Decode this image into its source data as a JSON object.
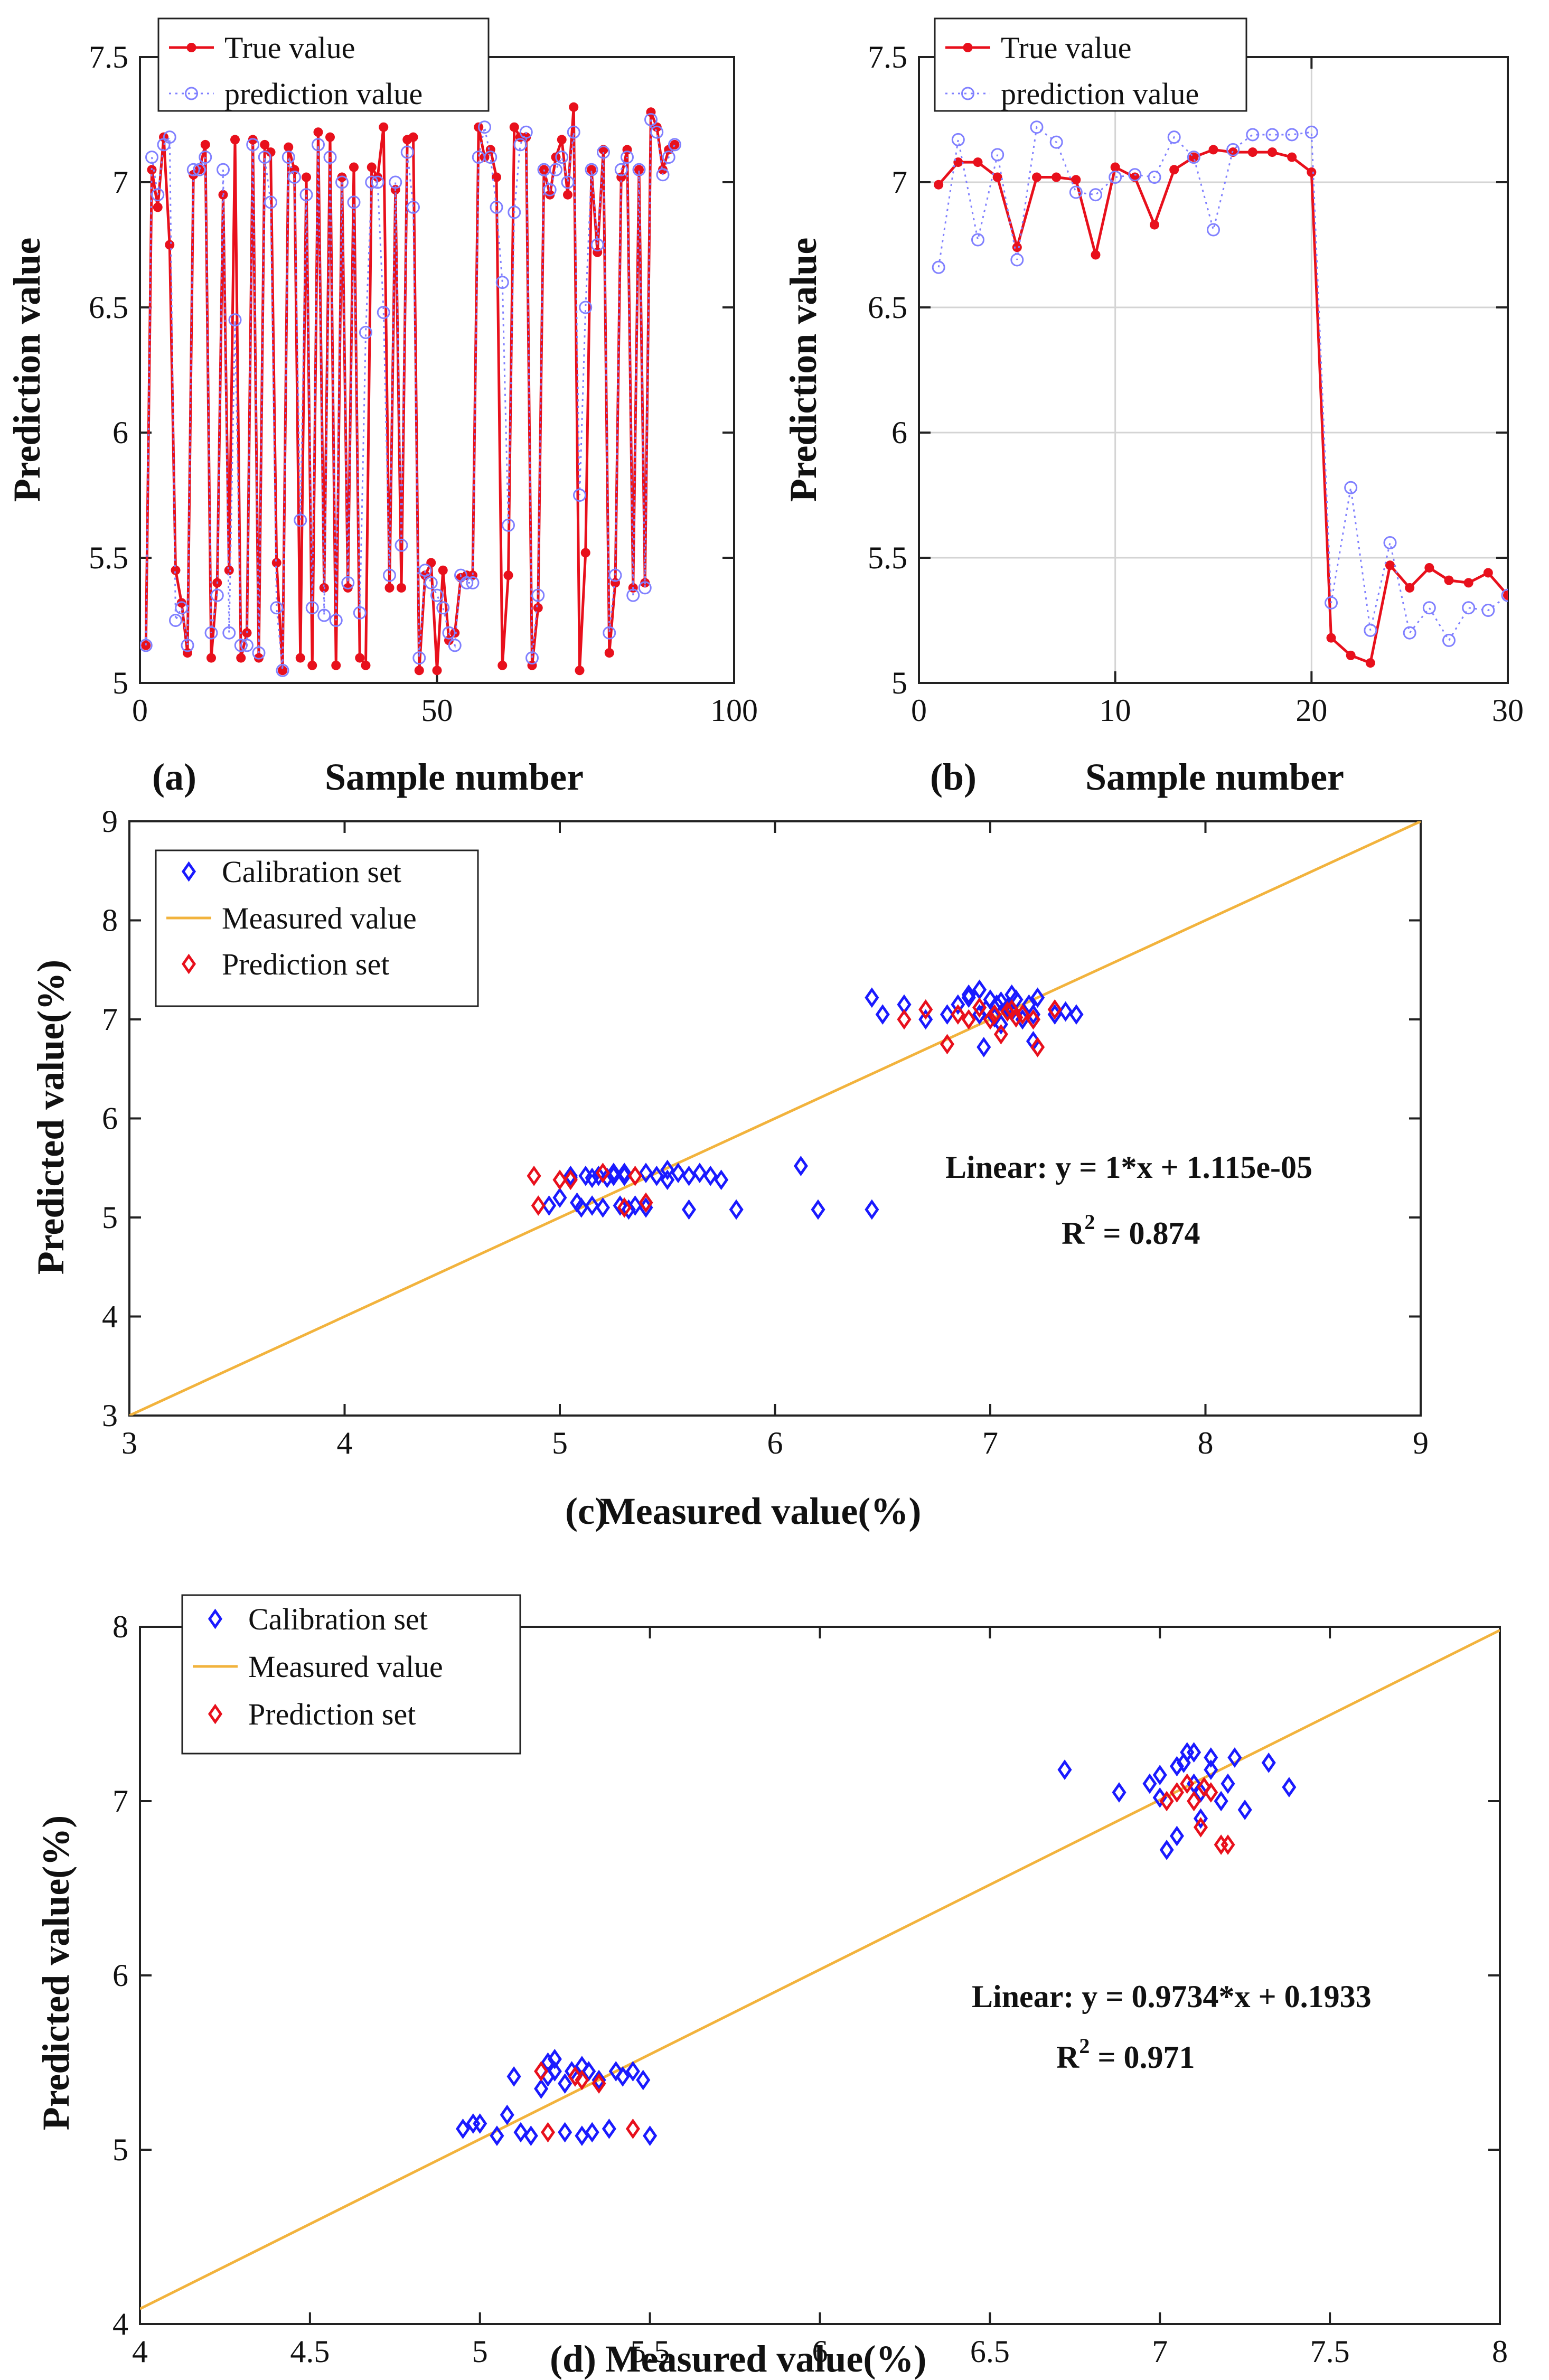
{
  "chart_data": [
    {
      "id": "a",
      "type": "line",
      "panel_label": "(a)",
      "xlabel": "Sample number",
      "ylabel": "Prediction value",
      "xlim": [
        0,
        100
      ],
      "ylim": [
        5,
        7.5
      ],
      "xticks": [
        "0",
        "50",
        "100"
      ],
      "xtick_values": [
        0,
        50,
        100
      ],
      "yticks": [
        "5",
        "5.5",
        "6",
        "6.5",
        "7",
        "7.5"
      ],
      "ytick_values": [
        5,
        5.5,
        6,
        6.5,
        7,
        7.5
      ],
      "grid": false,
      "legend": [
        "True value",
        "prediction value"
      ],
      "legend_position": "top-left",
      "series": [
        {
          "name": "True value",
          "color": "#e8101c",
          "style": "solid-dot",
          "x": [
            1,
            2,
            3,
            4,
            5,
            6,
            7,
            8,
            9,
            10,
            11,
            12,
            13,
            14,
            15,
            16,
            17,
            18,
            19,
            20,
            21,
            22,
            23,
            24,
            25,
            26,
            27,
            28,
            29,
            30,
            31,
            32,
            33,
            34,
            35,
            36,
            37,
            38,
            39,
            40,
            41,
            42,
            43,
            44,
            45,
            46,
            47,
            48,
            49,
            50,
            51,
            52,
            53,
            54,
            55,
            56,
            57,
            58,
            59,
            60,
            61,
            62,
            63,
            64,
            65,
            66,
            67,
            68,
            69,
            70,
            71,
            72,
            73,
            74,
            75,
            76,
            77,
            78,
            79,
            80,
            81,
            82,
            83,
            84,
            85,
            86,
            87,
            88,
            89,
            90
          ],
          "values": [
            5.15,
            7.05,
            6.9,
            7.18,
            6.75,
            5.45,
            5.32,
            5.12,
            7.03,
            7.05,
            7.15,
            5.1,
            5.4,
            6.95,
            5.45,
            7.17,
            5.1,
            5.2,
            7.17,
            5.1,
            7.15,
            7.12,
            5.48,
            5.05,
            7.14,
            7.05,
            5.1,
            7.02,
            5.07,
            7.2,
            5.38,
            7.18,
            5.07,
            7.02,
            5.38,
            7.06,
            5.1,
            5.07,
            7.06,
            7.02,
            7.22,
            5.38,
            6.97,
            5.38,
            7.17,
            7.18,
            5.05,
            5.43,
            5.48,
            5.05,
            5.45,
            5.17,
            5.2,
            5.42,
            5.43,
            5.43,
            7.22,
            7.1,
            7.13,
            7.02,
            5.07,
            5.43,
            7.22,
            7.18,
            7.18,
            5.07,
            5.3,
            7.05,
            6.95,
            7.1,
            7.17,
            6.95,
            7.3,
            5.05,
            5.52,
            7.05,
            6.72,
            7.13,
            5.12,
            5.4,
            7.02,
            7.13,
            5.38,
            7.05,
            5.4,
            7.28,
            7.22,
            7.05,
            7.13,
            7.15
          ]
        },
        {
          "name": "prediction value",
          "color": "#8080ff",
          "style": "dotted-circle",
          "x": [
            1,
            2,
            3,
            4,
            5,
            6,
            7,
            8,
            9,
            10,
            11,
            12,
            13,
            14,
            15,
            16,
            17,
            18,
            19,
            20,
            21,
            22,
            23,
            24,
            25,
            26,
            27,
            28,
            29,
            30,
            31,
            32,
            33,
            34,
            35,
            36,
            37,
            38,
            39,
            40,
            41,
            42,
            43,
            44,
            45,
            46,
            47,
            48,
            49,
            50,
            51,
            52,
            53,
            54,
            55,
            56,
            57,
            58,
            59,
            60,
            61,
            62,
            63,
            64,
            65,
            66,
            67,
            68,
            69,
            70,
            71,
            72,
            73,
            74,
            75,
            76,
            77,
            78,
            79,
            80,
            81,
            82,
            83,
            84,
            85,
            86,
            87,
            88,
            89,
            90
          ],
          "values": [
            5.15,
            7.1,
            6.95,
            7.15,
            7.18,
            5.25,
            5.3,
            5.15,
            7.05,
            7.05,
            7.1,
            5.2,
            5.35,
            7.05,
            5.2,
            6.45,
            5.15,
            5.15,
            7.15,
            5.12,
            7.1,
            6.92,
            5.3,
            5.05,
            7.1,
            7.02,
            5.65,
            6.95,
            5.3,
            7.15,
            5.27,
            7.1,
            5.25,
            7.0,
            5.4,
            6.92,
            5.28,
            6.4,
            7.0,
            7.0,
            6.48,
            5.43,
            7.0,
            5.55,
            7.12,
            6.9,
            5.1,
            5.45,
            5.4,
            5.35,
            5.3,
            5.2,
            5.15,
            5.43,
            5.4,
            5.4,
            7.1,
            7.22,
            7.1,
            6.9,
            6.6,
            5.63,
            6.88,
            7.15,
            7.2,
            5.1,
            5.35,
            7.05,
            6.97,
            7.05,
            7.1,
            7.0,
            7.2,
            5.75,
            6.5,
            7.05,
            6.75,
            7.12,
            5.2,
            5.43,
            7.05,
            7.1,
            5.35,
            7.05,
            5.38,
            7.25,
            7.2,
            7.03,
            7.1,
            7.15
          ]
        }
      ]
    },
    {
      "id": "b",
      "type": "line",
      "panel_label": "(b)",
      "xlabel": "Sample number",
      "ylabel": "Prediction value",
      "xlim": [
        0,
        30
      ],
      "ylim": [
        5,
        7.5
      ],
      "xticks": [
        "0",
        "10",
        "20",
        "30"
      ],
      "xtick_values": [
        0,
        10,
        20,
        30
      ],
      "yticks": [
        "5",
        "5.5",
        "6",
        "6.5",
        "7",
        "7.5"
      ],
      "ytick_values": [
        5,
        5.5,
        6,
        6.5,
        7,
        7.5
      ],
      "grid": true,
      "legend": [
        "True value",
        "prediction value"
      ],
      "legend_position": "top-left",
      "series": [
        {
          "name": "True value",
          "color": "#e8101c",
          "style": "solid-dot",
          "x": [
            1,
            2,
            3,
            4,
            5,
            6,
            7,
            8,
            9,
            10,
            11,
            12,
            13,
            14,
            15,
            16,
            17,
            18,
            19,
            20,
            21,
            22,
            23,
            24,
            25,
            26,
            27,
            28,
            29,
            30
          ],
          "values": [
            6.99,
            7.08,
            7.08,
            7.02,
            6.74,
            7.02,
            7.02,
            7.01,
            6.71,
            7.06,
            7.02,
            6.83,
            7.05,
            7.1,
            7.13,
            7.12,
            7.12,
            7.12,
            7.1,
            7.04,
            5.18,
            5.11,
            5.08,
            5.47,
            5.38,
            5.46,
            5.41,
            5.4,
            5.44,
            5.35
          ]
        },
        {
          "name": "prediction value",
          "color": "#8080ff",
          "style": "dotted-circle",
          "x": [
            1,
            2,
            3,
            4,
            5,
            6,
            7,
            8,
            9,
            10,
            11,
            12,
            13,
            14,
            15,
            16,
            17,
            18,
            19,
            20,
            21,
            22,
            23,
            24,
            25,
            26,
            27,
            28,
            29,
            30
          ],
          "values": [
            6.66,
            7.17,
            6.77,
            7.11,
            6.69,
            7.22,
            7.16,
            6.96,
            6.95,
            7.02,
            7.03,
            7.02,
            7.18,
            7.1,
            6.81,
            7.13,
            7.19,
            7.19,
            7.19,
            7.2,
            5.32,
            5.78,
            5.21,
            5.56,
            5.2,
            5.3,
            5.17,
            5.3,
            5.29,
            5.35
          ]
        }
      ]
    },
    {
      "id": "c",
      "type": "scatter",
      "panel_label": "(c)",
      "xlabel": "Measured value(%)",
      "ylabel": "Predicted value(%)",
      "xlim": [
        3,
        9
      ],
      "ylim": [
        3,
        9
      ],
      "xticks": [
        "3",
        "4",
        "5",
        "6",
        "7",
        "8",
        "9"
      ],
      "xtick_values": [
        3,
        4,
        5,
        6,
        7,
        8,
        9
      ],
      "yticks": [
        "3",
        "4",
        "5",
        "6",
        "7",
        "8",
        "9"
      ],
      "ytick_values": [
        3,
        4,
        5,
        6,
        7,
        8,
        9
      ],
      "grid": false,
      "legend": [
        "Calibration set",
        "Measured value",
        "Prediction set"
      ],
      "legend_position": "top-left",
      "fit_line": {
        "name": "Measured value",
        "color": "#f2b33d",
        "slope": 1,
        "intercept": 1.115e-05
      },
      "annotations": {
        "equation": "Linear:  y = 1*x + 1.115e-05",
        "r2_prefix": "R",
        "r2_sup": "2",
        "r2_value": " = 0.874"
      },
      "series": [
        {
          "name": "Calibration set",
          "color": "#1a1aff",
          "x": [
            4.95,
            5.0,
            5.05,
            5.08,
            5.1,
            5.12,
            5.15,
            5.18,
            5.2,
            5.22,
            5.25,
            5.28,
            5.3,
            5.32,
            5.35,
            5.4,
            5.45,
            5.5,
            5.55,
            5.6,
            5.65,
            5.7,
            5.75,
            5.82,
            6.12,
            6.2,
            6.45,
            5.05,
            5.15,
            5.25,
            5.3,
            5.4,
            5.5,
            5.6,
            6.45,
            6.5,
            6.6,
            6.7,
            6.8,
            6.85,
            6.9,
            6.95,
            6.97,
            7.0,
            7.02,
            7.05,
            7.08,
            7.1,
            7.12,
            7.15,
            7.18,
            7.2,
            7.22,
            7.3,
            7.35,
            7.4,
            6.9,
            6.95,
            7.05,
            7.1,
            7.2,
            6.98,
            7.03
          ],
          "values": [
            5.12,
            5.2,
            5.4,
            5.15,
            5.1,
            5.42,
            5.12,
            5.42,
            5.1,
            5.4,
            5.45,
            5.12,
            5.42,
            5.08,
            5.12,
            5.1,
            5.42,
            5.38,
            5.45,
            5.42,
            5.45,
            5.42,
            5.38,
            5.08,
            5.52,
            5.08,
            5.08,
            5.42,
            5.4,
            5.42,
            5.45,
            5.45,
            5.48,
            5.08,
            7.22,
            7.05,
            7.15,
            7.0,
            7.05,
            7.15,
            7.25,
            7.05,
            6.72,
            7.2,
            7.02,
            7.18,
            7.12,
            7.08,
            7.2,
            7.0,
            7.15,
            7.05,
            7.22,
            7.05,
            7.08,
            7.05,
            7.22,
            7.3,
            6.95,
            7.25,
            6.78,
            7.1,
            7.15
          ]
        },
        {
          "name": "Prediction set",
          "color": "#e8101c",
          "x": [
            4.88,
            4.9,
            5.0,
            5.05,
            5.2,
            5.3,
            5.35,
            5.4,
            6.6,
            6.7,
            6.8,
            6.85,
            6.9,
            6.95,
            7.0,
            7.02,
            7.05,
            7.08,
            7.1,
            7.12,
            7.15,
            7.2,
            7.22,
            7.3
          ],
          "values": [
            5.42,
            5.12,
            5.38,
            5.38,
            5.45,
            5.1,
            5.42,
            5.15,
            7.0,
            7.1,
            6.75,
            7.05,
            7.0,
            7.12,
            7.0,
            7.05,
            6.85,
            7.08,
            7.1,
            7.02,
            7.05,
            7.0,
            6.72,
            7.1
          ]
        }
      ]
    },
    {
      "id": "d",
      "type": "scatter",
      "panel_label": "(d)",
      "xlabel": "Measured value(%)",
      "ylabel": "Predicted value(%)",
      "xlim": [
        4,
        8
      ],
      "ylim": [
        4,
        8
      ],
      "xticks": [
        "4",
        "4.5",
        "5",
        "5.5",
        "6",
        "6.5",
        "7",
        "7.5",
        "8"
      ],
      "xtick_values": [
        4,
        4.5,
        5,
        5.5,
        6,
        6.5,
        7,
        7.5,
        8
      ],
      "yticks": [
        "4",
        "5",
        "6",
        "7",
        "8"
      ],
      "ytick_values": [
        4,
        5,
        6,
        7,
        8
      ],
      "grid": false,
      "legend": [
        "Calibration set",
        "Measured value",
        "Prediction set"
      ],
      "legend_position": "top-left",
      "fit_line": {
        "name": "Measured value",
        "color": "#f2b33d",
        "slope": 0.9734,
        "intercept": 0.1933
      },
      "annotations": {
        "equation": "Linear:  y = 0.9734*x + 0.1933",
        "r2_prefix": "R",
        "r2_sup": "2",
        "r2_value": " = 0.971"
      },
      "series": [
        {
          "name": "Calibration set",
          "color": "#1a1aff",
          "x": [
            4.95,
            4.98,
            5.0,
            5.05,
            5.08,
            5.1,
            5.12,
            5.15,
            5.18,
            5.2,
            5.22,
            5.25,
            5.28,
            5.3,
            5.32,
            5.35,
            5.38,
            5.4,
            5.42,
            5.45,
            5.48,
            5.5,
            5.2,
            5.25,
            5.3,
            5.33,
            5.22,
            5.27,
            6.72,
            6.88,
            6.97,
            7.0,
            7.02,
            7.05,
            7.07,
            7.1,
            7.12,
            7.15,
            7.18,
            7.2,
            7.22,
            7.25,
            7.32,
            7.38,
            7.05,
            7.1,
            7.15,
            7.0,
            7.08,
            7.12
          ],
          "values": [
            5.12,
            5.15,
            5.15,
            5.08,
            5.2,
            5.42,
            5.1,
            5.08,
            5.35,
            5.5,
            5.45,
            5.1,
            5.42,
            5.08,
            5.45,
            5.4,
            5.12,
            5.45,
            5.42,
            5.45,
            5.4,
            5.08,
            5.42,
            5.38,
            5.48,
            5.1,
            5.52,
            5.45,
            7.18,
            7.05,
            7.1,
            7.15,
            6.72,
            7.2,
            7.22,
            7.28,
            7.05,
            7.25,
            7.0,
            7.1,
            7.25,
            6.95,
            7.22,
            7.08,
            6.8,
            7.1,
            7.18,
            7.02,
            7.28,
            6.9
          ]
        },
        {
          "name": "Prediction set",
          "color": "#e8101c",
          "x": [
            5.18,
            5.2,
            5.28,
            5.3,
            5.35,
            5.45,
            7.05,
            7.08,
            7.1,
            7.12,
            7.15,
            7.18,
            7.2,
            7.13,
            7.02
          ],
          "values": [
            5.45,
            5.1,
            5.42,
            5.4,
            5.38,
            5.12,
            7.05,
            7.1,
            7.0,
            6.85,
            7.05,
            6.75,
            6.75,
            7.08,
            7.0
          ]
        }
      ]
    }
  ]
}
